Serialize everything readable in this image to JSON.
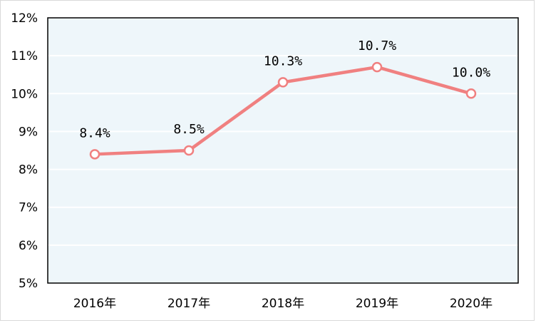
{
  "chart_data": {
    "type": "line",
    "categories": [
      "2016年",
      "2017年",
      "2018年",
      "2019年",
      "2020年"
    ],
    "series": [
      {
        "values": [
          8.4,
          8.5,
          10.3,
          10.7,
          10.0
        ],
        "labels": [
          "8.4%",
          "8.5%",
          "10.3%",
          "10.7%",
          "10.0%"
        ],
        "color": "#f08080"
      }
    ],
    "ylim": [
      5,
      12
    ],
    "yticks": [
      "5%",
      "6%",
      "7%",
      "8%",
      "9%",
      "10%",
      "11%",
      "12%"
    ],
    "grid": true,
    "plot_background": "#eef6fa",
    "gridline_color": "#ffffff"
  }
}
